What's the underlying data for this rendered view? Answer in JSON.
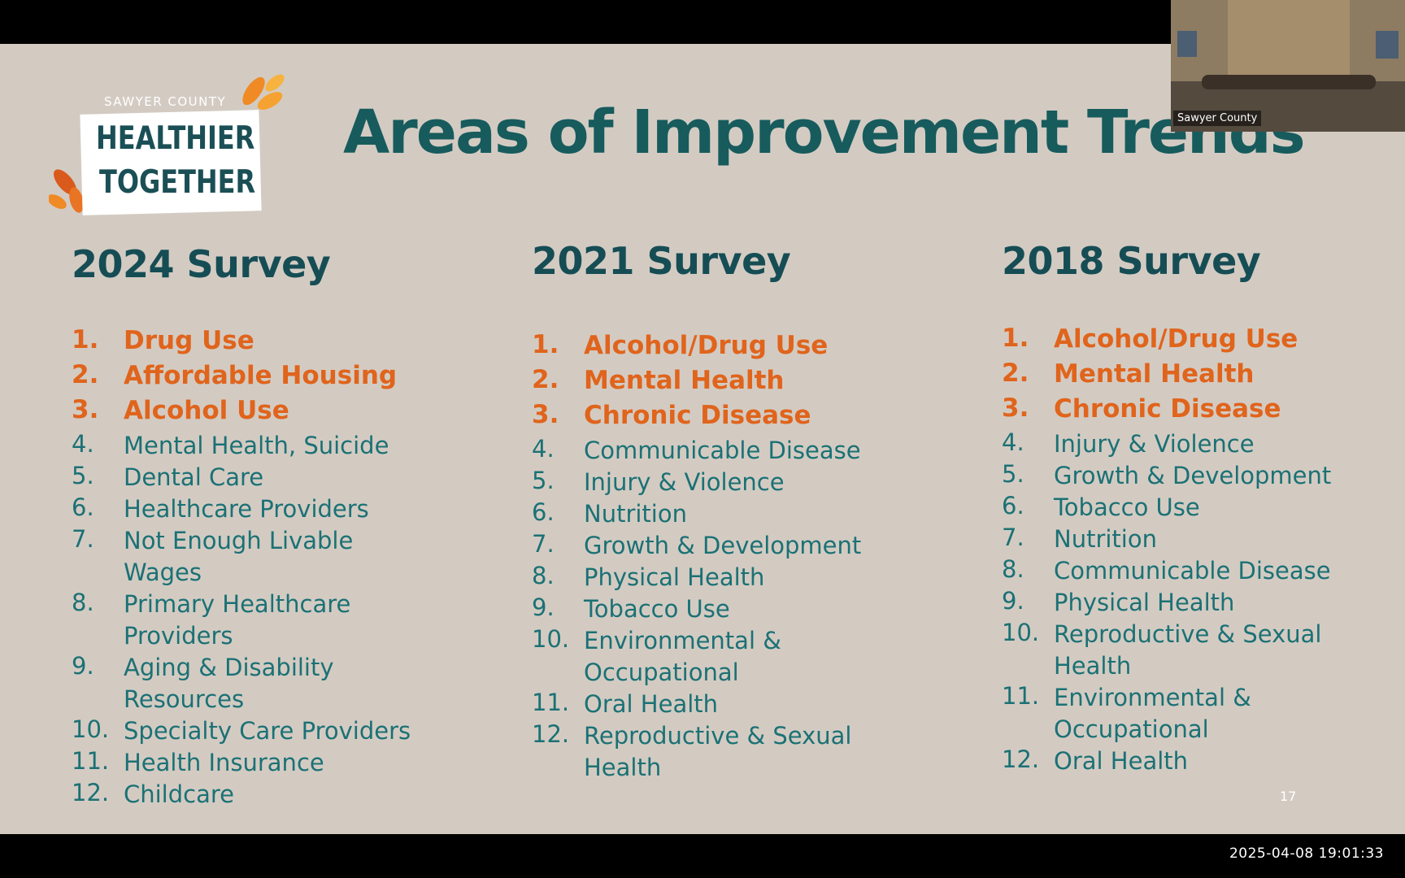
{
  "logo": {
    "county": "SAWYER COUNTY",
    "line1": "HEALTHIER",
    "line2": "TOGETHER"
  },
  "title": "Areas of Improvement Trends",
  "columns": [
    {
      "heading": "2024 Survey",
      "items": [
        {
          "num": "1.",
          "text": "Drug Use",
          "top": true
        },
        {
          "num": "2.",
          "text": "Affordable Housing",
          "top": true
        },
        {
          "num": "3.",
          "text": "Alcohol Use",
          "top": true
        },
        {
          "num": "4.",
          "text": "Mental Health, Suicide"
        },
        {
          "num": "5.",
          "text": "Dental Care"
        },
        {
          "num": "6.",
          "text": "Healthcare Providers"
        },
        {
          "num": "7.",
          "text": "Not Enough Livable",
          "text2": "Wages"
        },
        {
          "num": "8.",
          "text": "Primary Healthcare",
          "text2": "Providers"
        },
        {
          "num": "9.",
          "text": "Aging & Disability",
          "text2": "Resources"
        },
        {
          "num": "10.",
          "text": "Specialty Care Providers"
        },
        {
          "num": "11.",
          "text": "Health Insurance"
        },
        {
          "num": "12.",
          "text": "Childcare"
        }
      ]
    },
    {
      "heading": "2021 Survey",
      "items": [
        {
          "num": "1.",
          "text": "Alcohol/Drug Use",
          "top": true
        },
        {
          "num": "2.",
          "text": "Mental Health",
          "top": true
        },
        {
          "num": "3.",
          "text": "Chronic Disease",
          "top": true
        },
        {
          "num": "4.",
          "text": "Communicable Disease"
        },
        {
          "num": "5.",
          "text": "Injury & Violence"
        },
        {
          "num": "6.",
          "text": "Nutrition"
        },
        {
          "num": "7.",
          "text": "Growth & Development"
        },
        {
          "num": "8.",
          "text": "Physical Health"
        },
        {
          "num": "9.",
          "text": "Tobacco Use"
        },
        {
          "num": "10.",
          "text": "Environmental &",
          "text2": "Occupational"
        },
        {
          "num": "11.",
          "text": "Oral Health"
        },
        {
          "num": "12.",
          "text": "Reproductive & Sexual",
          "text2": "Health"
        }
      ]
    },
    {
      "heading": "2018 Survey",
      "items": [
        {
          "num": "1.",
          "text": "Alcohol/Drug Use",
          "top": true
        },
        {
          "num": "2.",
          "text": "Mental Health",
          "top": true
        },
        {
          "num": "3.",
          "text": "Chronic Disease",
          "top": true
        },
        {
          "num": "4.",
          "text": "Injury & Violence"
        },
        {
          "num": "5.",
          "text": "Growth & Development"
        },
        {
          "num": "6.",
          "text": "Tobacco Use"
        },
        {
          "num": "7.",
          "text": "Nutrition"
        },
        {
          "num": "8.",
          "text": "Communicable Disease"
        },
        {
          "num": "9.",
          "text": "Physical Health"
        },
        {
          "num": "10.",
          "text": "Reproductive & Sexual",
          "text2": "Health"
        },
        {
          "num": "11.",
          "text": "Environmental &",
          "text2": "Occupational"
        },
        {
          "num": "12.",
          "text": "Oral Health"
        }
      ]
    }
  ],
  "page_number": "17",
  "video": {
    "label": "Sawyer County"
  },
  "timestamp": "2025-04-08  19:01:33",
  "colors": {
    "title": "#175b5d",
    "highlight": "#e0641c",
    "item": "#1b7175",
    "background": "#d3cbc2"
  }
}
